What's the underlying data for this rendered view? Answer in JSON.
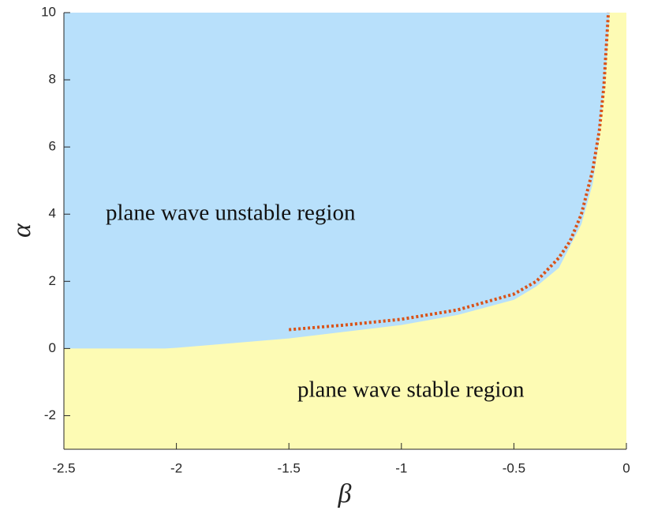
{
  "chart_data": {
    "type": "region",
    "xlabel": "β",
    "ylabel": "α",
    "xlim": [
      -2.5,
      0
    ],
    "ylim": [
      -3,
      10
    ],
    "xticks": [
      -2.5,
      -2,
      -1.5,
      -1,
      -0.5,
      0
    ],
    "yticks": [
      -2,
      0,
      2,
      4,
      6,
      8,
      10
    ],
    "boundary": {
      "x": [
        -2.5,
        -2.05,
        -2,
        -1.5,
        -1,
        -0.75,
        -0.5,
        -0.4,
        -0.3,
        -0.2,
        -0.15,
        -0.12,
        -0.09,
        -0.075
      ],
      "y": [
        0,
        0,
        0.02,
        0.3,
        0.7,
        1.0,
        1.45,
        1.85,
        2.4,
        3.7,
        4.9,
        6.3,
        8.4,
        10
      ]
    },
    "regions": [
      {
        "name": "plane wave unstable region",
        "color": "#b8e0fb"
      },
      {
        "name": "plane wave stable region",
        "color": "#fdfbb4"
      }
    ],
    "series": [
      {
        "color": "#d95319",
        "x": [
          -1.5,
          -1.25,
          -1,
          -0.75,
          -0.5,
          -0.4,
          -0.3,
          -0.25,
          -0.2,
          -0.15,
          -0.12,
          -0.1,
          -0.08
        ],
        "values": [
          0.56,
          0.7,
          0.87,
          1.15,
          1.62,
          2.0,
          2.7,
          3.2,
          4.0,
          5.3,
          6.5,
          7.8,
          10
        ]
      }
    ]
  }
}
